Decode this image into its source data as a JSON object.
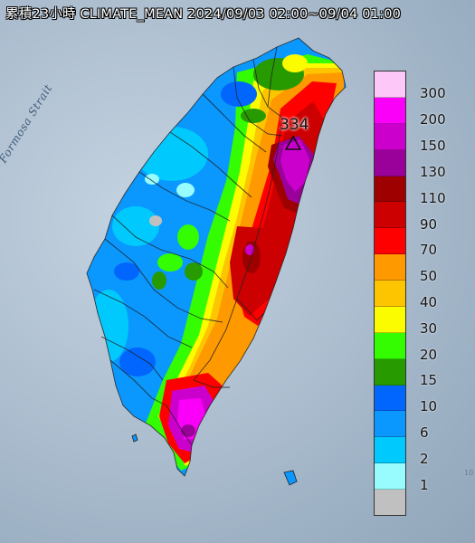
{
  "title": "累積23小時 CLIMATE_MEAN 2024/09/03 02:00~09/04 01:00",
  "sea_label": "Formosa Strait",
  "max_value_label": "334",
  "legend": {
    "labels": [
      "300",
      "200",
      "150",
      "130",
      "110",
      "90",
      "70",
      "50",
      "40",
      "30",
      "20",
      "15",
      "10",
      "6",
      "2",
      "1"
    ],
    "colors": [
      "#fdc8f8",
      "#fb00f9",
      "#cc00cc",
      "#9a009a",
      "#9e0000",
      "#cc0000",
      "#fe0000",
      "#fe9900",
      "#fdc500",
      "#fcfc00",
      "#33fd00",
      "#279a00",
      "#0066fe",
      "#0a97fe",
      "#00cafd",
      "#98fbfe",
      "#c0c0c0"
    ]
  },
  "corner_text": "10"
}
